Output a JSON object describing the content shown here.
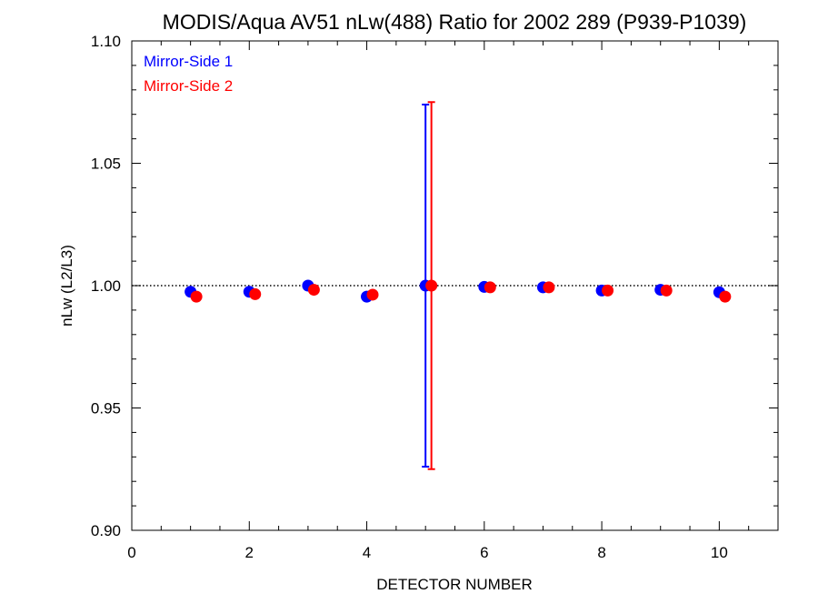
{
  "chart_data": {
    "type": "scatter",
    "title": "MODIS/Aqua AV51 nLw(488) Ratio for 2002 289 (P939-P1039)",
    "xlabel": "DETECTOR NUMBER",
    "ylabel": "nLw (L2/L3)",
    "xlim": [
      0,
      11
    ],
    "ylim": [
      0.9,
      1.1
    ],
    "x_ticks": [
      0,
      2,
      4,
      6,
      8,
      10
    ],
    "x_tick_labels": [
      "0",
      "2",
      "4",
      "6",
      "8",
      "10"
    ],
    "y_ticks": [
      0.9,
      0.95,
      1.0,
      1.05,
      1.1
    ],
    "y_tick_labels": [
      "0.90",
      "0.95",
      "1.00",
      "1.05",
      "1.10"
    ],
    "reference_line": 1.0,
    "legend_position": "top-left",
    "series": [
      {
        "name": "Mirror-Side 1",
        "color": "#0000ff",
        "x": [
          1,
          2,
          3,
          4,
          5,
          6,
          7,
          8,
          9,
          10
        ],
        "y": [
          0.9975,
          0.9975,
          1.0,
          0.9955,
          1.0,
          0.9995,
          0.9993,
          0.998,
          0.9983,
          0.9973
        ],
        "error_bars": [
          null,
          null,
          null,
          null,
          {
            "low": 0.926,
            "high": 1.074
          },
          null,
          null,
          null,
          null,
          null
        ]
      },
      {
        "name": "Mirror-Side 2",
        "color": "#ff0000",
        "x": [
          1.1,
          2.1,
          3.1,
          4.1,
          5.1,
          6.1,
          7.1,
          8.1,
          9.1,
          10.1
        ],
        "y": [
          0.9955,
          0.9965,
          0.9983,
          0.9963,
          1.0,
          0.9993,
          0.9993,
          0.998,
          0.998,
          0.9955
        ],
        "error_bars": [
          null,
          null,
          null,
          null,
          {
            "low": 0.925,
            "high": 1.075
          },
          null,
          null,
          null,
          null,
          null
        ]
      }
    ]
  }
}
